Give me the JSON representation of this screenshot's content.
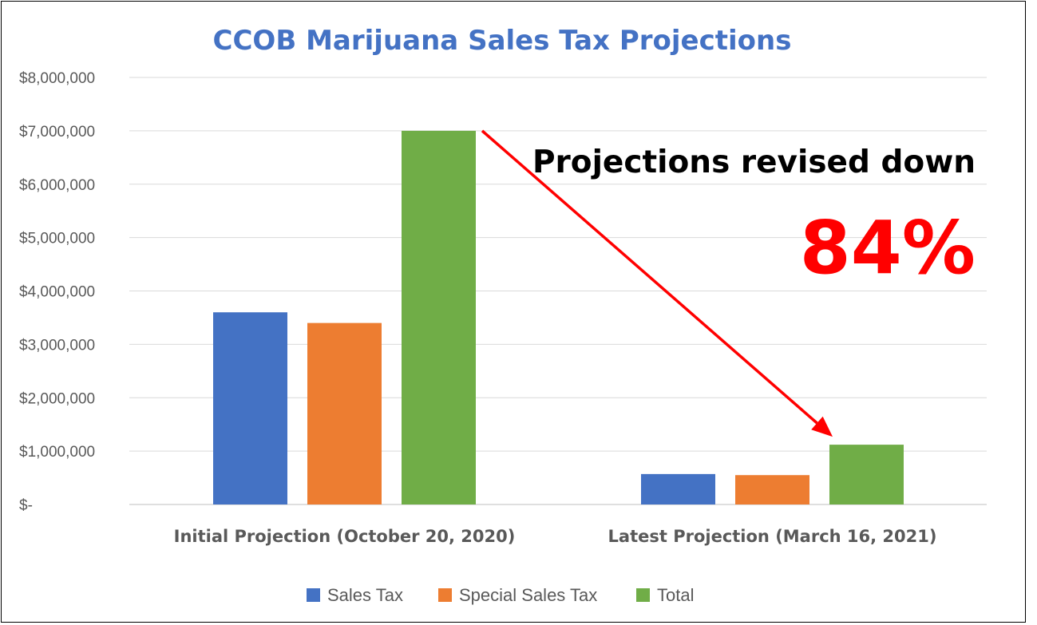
{
  "chart_data": {
    "type": "bar",
    "title": "CCOB Marijuana Sales Tax Projections",
    "categories": [
      "Initial Projection (October 20, 2020)",
      "Latest Projection (March 16, 2021)"
    ],
    "series": [
      {
        "name": "Sales Tax",
        "color": "#4472C4",
        "values": [
          3600000,
          570000
        ]
      },
      {
        "name": "Special Sales Tax",
        "color": "#ED7D31",
        "values": [
          3400000,
          550000
        ]
      },
      {
        "name": "Total",
        "color": "#70AD47",
        "values": [
          7000000,
          1120000
        ]
      }
    ],
    "ylim": [
      0,
      8000000
    ],
    "yticks": [
      0,
      1000000,
      2000000,
      3000000,
      4000000,
      5000000,
      6000000,
      7000000,
      8000000
    ],
    "ytick_labels": [
      "$-",
      "$1,000,000",
      "$2,000,000",
      "$3,000,000",
      "$4,000,000",
      "$5,000,000",
      "$6,000,000",
      "$7,000,000",
      "$8,000,000"
    ],
    "grid": true,
    "legend_position": "bottom",
    "annotations": {
      "headline": "Projections revised down",
      "percent": "84%",
      "arrow_color": "#FF0000"
    }
  }
}
